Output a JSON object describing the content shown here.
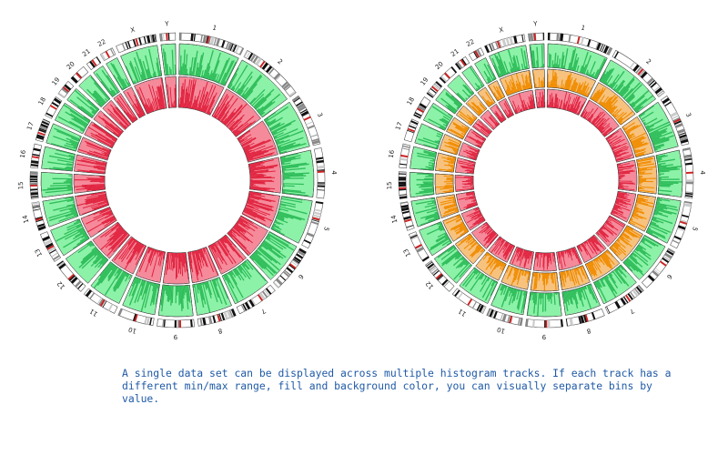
{
  "figure": {
    "chromosomes": [
      "1",
      "2",
      "3",
      "4",
      "5",
      "6",
      "7",
      "8",
      "9",
      "10",
      "11",
      "12",
      "13",
      "14",
      "15",
      "16",
      "17",
      "18",
      "19",
      "20",
      "21",
      "22",
      "X",
      "Y"
    ],
    "colors": {
      "green_bg": "#8cf2a8",
      "green_fill": "#2fbd5a",
      "red_bg": "#f58a9a",
      "red_fill": "#e0213d",
      "orange_bg": "#f7c27d",
      "orange_fill": "#f08c00",
      "histogram_line": "#333333",
      "band_dark": "#111111",
      "band_mid": "#888888",
      "band_light": "#cccccc",
      "centromere": "#cc2222"
    },
    "left_circle": {
      "tracks": [
        {
          "bg": "green_bg",
          "fill": "green_fill"
        },
        {
          "bg": "red_bg",
          "fill": "red_fill"
        }
      ]
    },
    "right_circle": {
      "tracks": [
        {
          "bg": "green_bg",
          "fill": "green_fill"
        },
        {
          "bg": "orange_bg",
          "fill": "orange_fill"
        },
        {
          "bg": "red_bg",
          "fill": "red_fill"
        }
      ]
    }
  },
  "caption": "A single data set can be displayed across multiple histogram tracks. If each track has a different min/max range, fill and background color, you can visually separate bins by value."
}
